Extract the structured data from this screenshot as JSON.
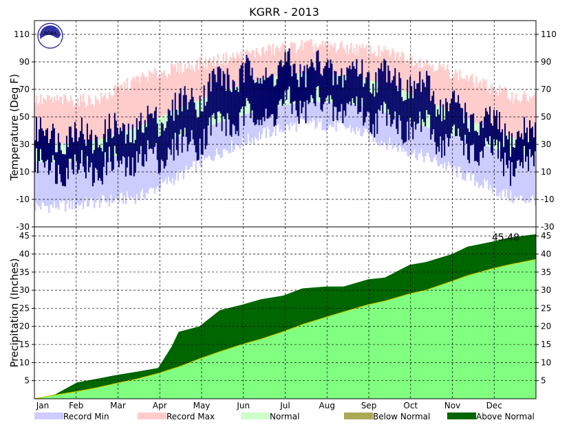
{
  "chart_data": [
    {
      "type": "bar",
      "title": "KGRR - 2013",
      "ylabel": "Temperature (Deg F)",
      "ylim": [
        -30,
        120
      ],
      "yticks": [
        "-30",
        "-10",
        "10",
        "30",
        "50",
        "70",
        "90",
        "110"
      ],
      "months": [
        "Jan",
        "Feb",
        "Mar",
        "Apr",
        "May",
        "Jun",
        "Jul",
        "Aug",
        "Sep",
        "Oct",
        "Nov",
        "Dec"
      ],
      "grid": true,
      "legend_position": "bottom",
      "series": [
        {
          "name": "Record Min",
          "color": "#ccccff",
          "monthly_values": [
            -15,
            -12,
            -8,
            8,
            26,
            38,
            46,
            42,
            30,
            19,
            4,
            -10
          ]
        },
        {
          "name": "Record Max",
          "color": "#ffcccc",
          "monthly_values": [
            62,
            62,
            78,
            86,
            92,
            98,
            102,
            100,
            96,
            88,
            76,
            64
          ]
        },
        {
          "name": "Normal",
          "color": "#ccffcc",
          "monthly_values": [
            [
              17,
              30
            ],
            [
              18,
              33
            ],
            [
              26,
              43
            ],
            [
              36,
              57
            ],
            [
              47,
              69
            ],
            [
              56,
              78
            ],
            [
              61,
              82
            ],
            [
              60,
              80
            ],
            [
              52,
              73
            ],
            [
              41,
              60
            ],
            [
              32,
              46
            ],
            [
              22,
              34
            ]
          ]
        },
        {
          "name": "",
          "color": "#000066",
          "monthly_values": [
            [
              15,
              38
            ],
            [
              12,
              36
            ],
            [
              18,
              42
            ],
            [
              28,
              58
            ],
            [
              45,
              78
            ],
            [
              52,
              82
            ],
            [
              60,
              86
            ],
            [
              56,
              82
            ],
            [
              48,
              80
            ],
            [
              38,
              66
            ],
            [
              26,
              48
            ],
            [
              15,
              36
            ]
          ]
        }
      ]
    },
    {
      "type": "area",
      "ylabel": "Precipitation (Inches)",
      "ylim": [
        0,
        47.5
      ],
      "yticks": [
        "5",
        "10",
        "15",
        "20",
        "25",
        "30",
        "35",
        "40",
        "45"
      ],
      "annotation": "45.48",
      "x_day": [
        0,
        15,
        31,
        45,
        59,
        75,
        90,
        100,
        105,
        110,
        120,
        135,
        151,
        165,
        181,
        195,
        212,
        225,
        243,
        255,
        273,
        285,
        304,
        315,
        334,
        345,
        365
      ],
      "observed": [
        0,
        1.2,
        4.5,
        5.5,
        6.5,
        7.5,
        8.5,
        14.5,
        18.5,
        19,
        20,
        24.5,
        26,
        27.5,
        28.5,
        30.5,
        31,
        31,
        33,
        33.5,
        37,
        37.8,
        40,
        42,
        43.5,
        44.5,
        45.48
      ],
      "normal": [
        0,
        1.0,
        2.0,
        3.0,
        4.2,
        5.5,
        7.0,
        8.2,
        8.8,
        9.5,
        11.0,
        13.0,
        15.0,
        16.5,
        18.5,
        20.5,
        22.5,
        24.0,
        26.0,
        27.0,
        29.0,
        30.0,
        32.5,
        34.0,
        36.0,
        37.0,
        38.5
      ],
      "series": [
        {
          "name": "Below Normal",
          "color": "#aaaa55"
        },
        {
          "name": "Above Normal",
          "color": "#006600"
        }
      ],
      "fill_color": "#80ff80"
    }
  ]
}
